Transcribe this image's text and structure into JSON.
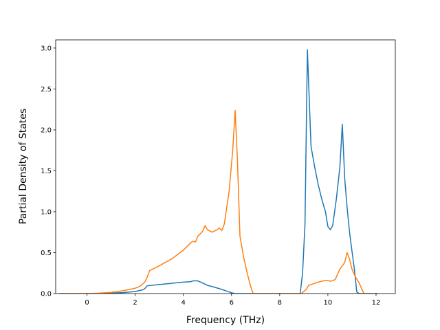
{
  "chart_data": {
    "type": "line",
    "xlabel": "Frequency (THz)",
    "ylabel": "Partial Density of States",
    "xlim": [
      -1.3,
      12.8
    ],
    "ylim": [
      0,
      3.1
    ],
    "xticks": [
      0,
      2,
      4,
      6,
      8,
      10,
      12
    ],
    "xtick_labels": [
      "0",
      "2",
      "4",
      "6",
      "8",
      "10",
      "12"
    ],
    "yticks": [
      0.0,
      0.5,
      1.0,
      1.5,
      2.0,
      2.5,
      3.0
    ],
    "ytick_labels": [
      "0.0",
      "0.5",
      "1.0",
      "1.5",
      "2.0",
      "2.5",
      "3.0"
    ],
    "grid": false,
    "legend": "none",
    "series": [
      {
        "color": "#1f77b4",
        "points": [
          [
            -1.15,
            0
          ],
          [
            0,
            0
          ],
          [
            0.5,
            0.002
          ],
          [
            1.0,
            0.006
          ],
          [
            1.5,
            0.012
          ],
          [
            2.0,
            0.025
          ],
          [
            2.3,
            0.045
          ],
          [
            2.4,
            0.06
          ],
          [
            2.5,
            0.095
          ],
          [
            3.0,
            0.11
          ],
          [
            3.5,
            0.125
          ],
          [
            4.0,
            0.14
          ],
          [
            4.3,
            0.145
          ],
          [
            4.4,
            0.155
          ],
          [
            4.6,
            0.155
          ],
          [
            4.8,
            0.13
          ],
          [
            5.0,
            0.1
          ],
          [
            5.2,
            0.085
          ],
          [
            5.5,
            0.06
          ],
          [
            5.8,
            0.03
          ],
          [
            6.0,
            0.01
          ],
          [
            6.15,
            0
          ],
          [
            8.85,
            0
          ],
          [
            8.95,
            0.25
          ],
          [
            9.05,
            0.85
          ],
          [
            9.15,
            2.98
          ],
          [
            9.3,
            1.8
          ],
          [
            9.45,
            1.55
          ],
          [
            9.6,
            1.33
          ],
          [
            9.75,
            1.15
          ],
          [
            9.9,
            1.0
          ],
          [
            10.0,
            0.82
          ],
          [
            10.1,
            0.78
          ],
          [
            10.2,
            0.83
          ],
          [
            10.35,
            1.15
          ],
          [
            10.5,
            1.55
          ],
          [
            10.6,
            2.07
          ],
          [
            10.7,
            1.4
          ],
          [
            10.8,
            1.05
          ],
          [
            10.9,
            0.75
          ],
          [
            11.0,
            0.52
          ],
          [
            11.1,
            0.3
          ],
          [
            11.2,
            0.02
          ],
          [
            11.3,
            0
          ],
          [
            12.1,
            0
          ]
        ]
      },
      {
        "color": "#ff7f0e",
        "points": [
          [
            -1.15,
            0
          ],
          [
            0,
            0
          ],
          [
            0.5,
            0.005
          ],
          [
            1.0,
            0.015
          ],
          [
            1.5,
            0.035
          ],
          [
            2.0,
            0.065
          ],
          [
            2.2,
            0.09
          ],
          [
            2.4,
            0.14
          ],
          [
            2.5,
            0.2
          ],
          [
            2.6,
            0.28
          ],
          [
            3.0,
            0.34
          ],
          [
            3.5,
            0.42
          ],
          [
            4.0,
            0.53
          ],
          [
            4.3,
            0.62
          ],
          [
            4.4,
            0.64
          ],
          [
            4.5,
            0.63
          ],
          [
            4.6,
            0.7
          ],
          [
            4.8,
            0.76
          ],
          [
            4.9,
            0.83
          ],
          [
            5.0,
            0.78
          ],
          [
            5.2,
            0.75
          ],
          [
            5.4,
            0.78
          ],
          [
            5.5,
            0.8
          ],
          [
            5.6,
            0.77
          ],
          [
            5.7,
            0.85
          ],
          [
            5.9,
            1.25
          ],
          [
            6.05,
            1.75
          ],
          [
            6.15,
            2.24
          ],
          [
            6.25,
            1.6
          ],
          [
            6.35,
            0.7
          ],
          [
            6.5,
            0.45
          ],
          [
            6.65,
            0.25
          ],
          [
            6.8,
            0.08
          ],
          [
            6.9,
            0
          ],
          [
            8.9,
            0
          ],
          [
            9.1,
            0.05
          ],
          [
            9.2,
            0.1
          ],
          [
            9.4,
            0.12
          ],
          [
            9.6,
            0.14
          ],
          [
            9.8,
            0.155
          ],
          [
            10.0,
            0.16
          ],
          [
            10.1,
            0.15
          ],
          [
            10.3,
            0.17
          ],
          [
            10.5,
            0.3
          ],
          [
            10.7,
            0.38
          ],
          [
            10.8,
            0.5
          ],
          [
            10.9,
            0.42
          ],
          [
            11.0,
            0.3
          ],
          [
            11.15,
            0.2
          ],
          [
            11.3,
            0.13
          ],
          [
            11.4,
            0.06
          ],
          [
            11.5,
            0
          ],
          [
            12.1,
            0
          ]
        ]
      }
    ]
  }
}
